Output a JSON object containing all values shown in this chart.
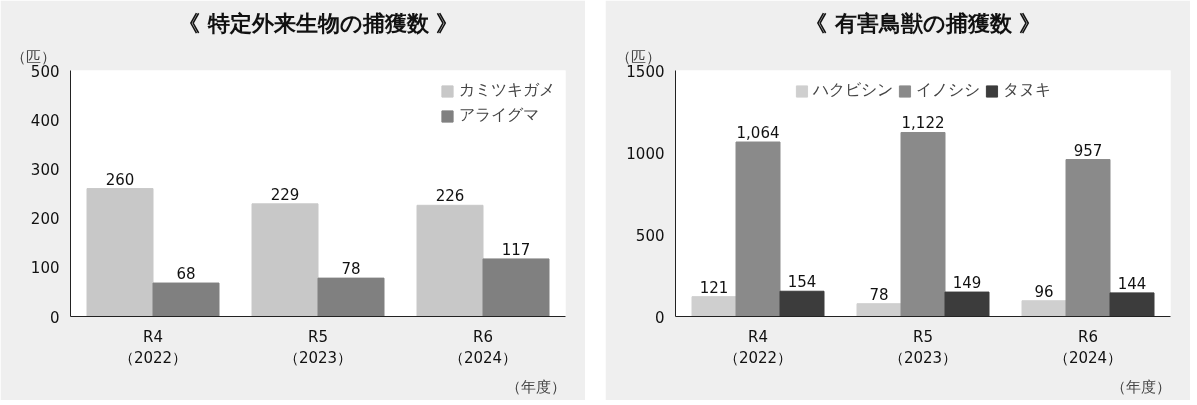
{
  "chart_data": [
    {
      "type": "bar",
      "title": "《 特定外来生物の捕獲数 》",
      "ylabel": "（匹）",
      "xlabel": "（年度）",
      "categories": [
        "R4\n（2022）",
        "R5\n（2023）",
        "R6\n（2024）"
      ],
      "series": [
        {
          "name": "カミツキガメ",
          "color": "#c8c8c8",
          "values": [
            260,
            229,
            226
          ]
        },
        {
          "name": "アライグマ",
          "color": "#808080",
          "values": [
            68,
            78,
            117
          ]
        }
      ],
      "ylim": [
        0,
        500
      ],
      "yticks": [
        0,
        100,
        200,
        300,
        400,
        500
      ],
      "data_labels": true,
      "legend": "top right",
      "grid": false
    },
    {
      "type": "bar",
      "title": "《 有害鳥獣の捕獲数 》",
      "ylabel": "（匹）",
      "xlabel": "（年度）",
      "categories": [
        "R4\n（2022）",
        "R5\n（2023）",
        "R6\n（2024）"
      ],
      "series": [
        {
          "name": "ハクビシン",
          "color": "#cfcfcf",
          "values": [
            121,
            78,
            96
          ],
          "value_labels": [
            "121",
            "78",
            "96"
          ]
        },
        {
          "name": "イノシシ",
          "color": "#8a8a8a",
          "values": [
            1064,
            1122,
            957
          ],
          "value_labels": [
            "1,064",
            "1,122",
            "957"
          ]
        },
        {
          "name": "タヌキ",
          "color": "#3c3c3c",
          "values": [
            154,
            149,
            144
          ],
          "value_labels": [
            "154",
            "149",
            "144"
          ]
        }
      ],
      "ylim": [
        0,
        1500
      ],
      "yticks": [
        0,
        500,
        1000,
        1500
      ],
      "legend": "top",
      "grid": false
    }
  ]
}
